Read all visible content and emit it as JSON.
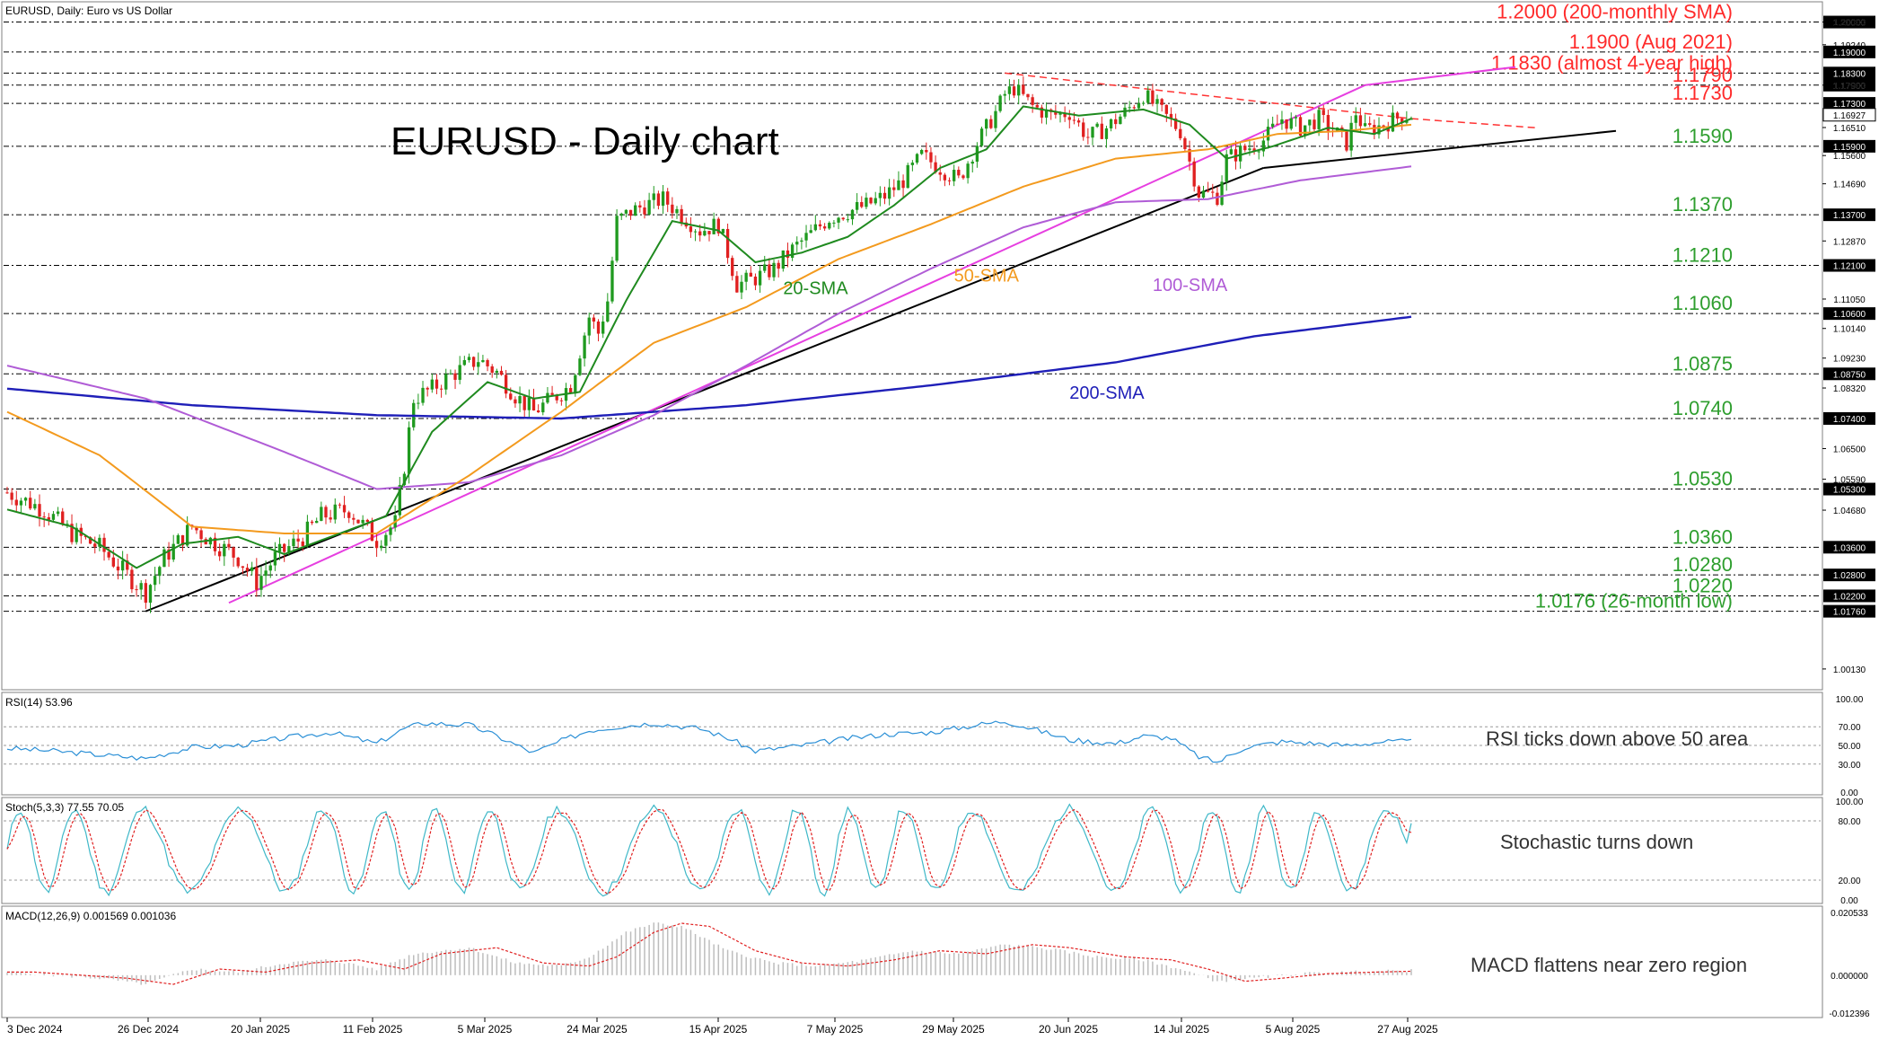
{
  "header": {
    "symbol_line": "EURUSD, Daily:  Euro vs US Dollar"
  },
  "chart_title": "EURUSD - Daily chart",
  "chart_data": {
    "type": "line",
    "main": {
      "price_axis_ticks": [
        1.2,
        1.1924,
        1.179,
        1.1651,
        1.156,
        1.1469,
        1.1287,
        1.1105,
        1.1014,
        1.0923,
        1.0832,
        1.065,
        1.0559,
        1.0468,
        1.0013
      ],
      "levels": [
        {
          "value": 1.2,
          "label": "1.2000 (200-monthly SMA)",
          "axis": "1.20000",
          "color": "#ff2a2a"
        },
        {
          "value": 1.19,
          "label": "1.1900 (Aug 2021)",
          "axis": "1.19000",
          "color": "#ff2a2a"
        },
        {
          "value": 1.183,
          "label": "1.1830 (almost 4-year high)",
          "axis": "1.18300",
          "color": "#ff2a2a"
        },
        {
          "value": 1.179,
          "label": "1.1790",
          "axis": "1.17900",
          "color": "#ff2a2a"
        },
        {
          "value": 1.173,
          "label": "1.1730",
          "axis": "1.17300",
          "color": "#ff2a2a"
        },
        {
          "value": 1.159,
          "label": "1.1590",
          "axis": "1.15900",
          "color": "#2e9e2e"
        },
        {
          "value": 1.137,
          "label": "1.1370",
          "axis": "1.13700",
          "color": "#2e9e2e"
        },
        {
          "value": 1.121,
          "label": "1.1210",
          "axis": "1.12100",
          "color": "#2e9e2e"
        },
        {
          "value": 1.106,
          "label": "1.1060",
          "axis": "1.10600",
          "color": "#2e9e2e"
        },
        {
          "value": 1.0875,
          "label": "1.0875",
          "axis": "1.08750",
          "color": "#2e9e2e"
        },
        {
          "value": 1.074,
          "label": "1.0740",
          "axis": "1.07400",
          "color": "#2e9e2e"
        },
        {
          "value": 1.053,
          "label": "1.0530",
          "axis": "1.05300",
          "color": "#2e9e2e"
        },
        {
          "value": 1.036,
          "label": "1.0360",
          "axis": "1.03600",
          "color": "#2e9e2e"
        },
        {
          "value": 1.028,
          "label": "1.0280",
          "axis": "1.02800",
          "color": "#2e9e2e"
        },
        {
          "value": 1.022,
          "label": "1.0220",
          "axis": "1.02200",
          "color": "#2e9e2e"
        },
        {
          "value": 1.0176,
          "label": "1.0176 (26-month low)",
          "axis": "1.01760",
          "color": "#2e9e2e"
        }
      ],
      "current_price_label": "1.16927",
      "current_price": 1.16927,
      "sma_labels": [
        {
          "text": "20-SMA",
          "color": "#1f8a1f"
        },
        {
          "text": "50-SMA",
          "color": "#f39a1e"
        },
        {
          "text": "100-SMA",
          "color": "#b05cd6"
        },
        {
          "text": "200-SMA",
          "color": "#1f1fb8"
        }
      ],
      "close_anchors": [
        [
          0,
          1.052
        ],
        [
          8,
          1.047
        ],
        [
          14,
          1.04
        ],
        [
          20,
          1.036
        ],
        [
          26,
          1.028
        ],
        [
          30,
          1.023
        ],
        [
          34,
          1.033
        ],
        [
          40,
          1.042
        ],
        [
          44,
          1.038
        ],
        [
          50,
          1.033
        ],
        [
          54,
          1.026
        ],
        [
          58,
          1.033
        ],
        [
          64,
          1.039
        ],
        [
          68,
          1.045
        ],
        [
          74,
          1.047
        ],
        [
          80,
          1.038
        ],
        [
          84,
          1.043
        ],
        [
          86,
          1.06
        ],
        [
          88,
          1.08
        ],
        [
          92,
          1.083
        ],
        [
          96,
          1.087
        ],
        [
          102,
          1.092
        ],
        [
          106,
          1.088
        ],
        [
          110,
          1.081
        ],
        [
          114,
          1.076
        ],
        [
          118,
          1.08
        ],
        [
          122,
          1.084
        ],
        [
          126,
          1.105
        ],
        [
          128,
          1.1
        ],
        [
          130,
          1.11
        ],
        [
          132,
          1.135
        ],
        [
          135,
          1.138
        ],
        [
          138,
          1.14
        ],
        [
          142,
          1.142
        ],
        [
          146,
          1.137
        ],
        [
          150,
          1.132
        ],
        [
          154,
          1.134
        ],
        [
          156,
          1.125
        ],
        [
          158,
          1.115
        ],
        [
          162,
          1.117
        ],
        [
          166,
          1.12
        ],
        [
          170,
          1.126
        ],
        [
          174,
          1.131
        ],
        [
          178,
          1.136
        ],
        [
          182,
          1.138
        ],
        [
          186,
          1.14
        ],
        [
          190,
          1.143
        ],
        [
          194,
          1.148
        ],
        [
          198,
          1.156
        ],
        [
          202,
          1.152
        ],
        [
          206,
          1.148
        ],
        [
          210,
          1.16
        ],
        [
          214,
          1.17
        ],
        [
          216,
          1.176
        ],
        [
          218,
          1.178
        ],
        [
          222,
          1.172
        ],
        [
          226,
          1.169
        ],
        [
          230,
          1.17
        ],
        [
          234,
          1.162
        ],
        [
          238,
          1.165
        ],
        [
          242,
          1.17
        ],
        [
          246,
          1.176
        ],
        [
          250,
          1.17
        ],
        [
          254,
          1.164
        ],
        [
          258,
          1.144
        ],
        [
          262,
          1.143
        ],
        [
          264,
          1.155
        ],
        [
          268,
          1.158
        ],
        [
          272,
          1.161
        ],
        [
          276,
          1.168
        ],
        [
          280,
          1.165
        ],
        [
          284,
          1.168
        ],
        [
          288,
          1.163
        ],
        [
          290,
          1.16
        ],
        [
          292,
          1.17
        ],
        [
          294,
          1.164
        ],
        [
          298,
          1.166
        ],
        [
          302,
          1.169
        ],
        [
          304,
          1.1693
        ]
      ],
      "sma200_anchors": [
        [
          0,
          1.083
        ],
        [
          40,
          1.078
        ],
        [
          80,
          1.075
        ],
        [
          120,
          1.074
        ],
        [
          160,
          1.078
        ],
        [
          200,
          1.084
        ],
        [
          240,
          1.091
        ],
        [
          270,
          1.099
        ],
        [
          304,
          1.105
        ]
      ],
      "sma100_anchors": [
        [
          0,
          1.09
        ],
        [
          30,
          1.08
        ],
        [
          60,
          1.064
        ],
        [
          80,
          1.053
        ],
        [
          100,
          1.055
        ],
        [
          120,
          1.063
        ],
        [
          140,
          1.075
        ],
        [
          160,
          1.09
        ],
        [
          180,
          1.106
        ],
        [
          200,
          1.12
        ],
        [
          220,
          1.133
        ],
        [
          240,
          1.141
        ],
        [
          260,
          1.142
        ],
        [
          280,
          1.148
        ],
        [
          304,
          1.1525
        ]
      ],
      "sma50_anchors": [
        [
          0,
          1.076
        ],
        [
          20,
          1.063
        ],
        [
          40,
          1.042
        ],
        [
          60,
          1.04
        ],
        [
          80,
          1.04
        ],
        [
          100,
          1.057
        ],
        [
          120,
          1.076
        ],
        [
          140,
          1.097
        ],
        [
          160,
          1.108
        ],
        [
          180,
          1.123
        ],
        [
          200,
          1.134
        ],
        [
          220,
          1.146
        ],
        [
          240,
          1.155
        ],
        [
          260,
          1.158
        ],
        [
          275,
          1.163
        ],
        [
          290,
          1.164
        ],
        [
          304,
          1.166
        ]
      ],
      "sma20_anchors": [
        [
          0,
          1.047
        ],
        [
          14,
          1.042
        ],
        [
          28,
          1.03
        ],
        [
          38,
          1.037
        ],
        [
          50,
          1.039
        ],
        [
          60,
          1.034
        ],
        [
          72,
          1.04
        ],
        [
          82,
          1.045
        ],
        [
          92,
          1.07
        ],
        [
          104,
          1.085
        ],
        [
          114,
          1.08
        ],
        [
          124,
          1.082
        ],
        [
          134,
          1.11
        ],
        [
          144,
          1.135
        ],
        [
          154,
          1.132
        ],
        [
          162,
          1.122
        ],
        [
          172,
          1.125
        ],
        [
          182,
          1.13
        ],
        [
          192,
          1.14
        ],
        [
          202,
          1.152
        ],
        [
          212,
          1.158
        ],
        [
          220,
          1.172
        ],
        [
          232,
          1.169
        ],
        [
          246,
          1.171
        ],
        [
          256,
          1.166
        ],
        [
          264,
          1.155
        ],
        [
          274,
          1.159
        ],
        [
          286,
          1.165
        ],
        [
          296,
          1.163
        ],
        [
          304,
          1.168
        ]
      ],
      "trendlines": [
        {
          "from": [
            30,
            1.0176
          ],
          "to": [
            272,
            1.152
          ],
          "color": "#000000",
          "style": "solid"
        },
        {
          "from": [
            48,
            1.02
          ],
          "to": [
            294,
            1.179
          ],
          "color": "#e63fe0",
          "style": "solid"
        },
        {
          "from": [
            216,
            1.183
          ],
          "to": [
            304,
            1.168
          ],
          "color": "#ff3333",
          "style": "dashed"
        }
      ]
    },
    "rsi": {
      "label": "RSI(14) 53.96",
      "annotation": "RSI ticks down above 50 area",
      "ticks": [
        100,
        70,
        50,
        30,
        0
      ],
      "value": 53.96,
      "anchors": [
        [
          0,
          47
        ],
        [
          10,
          44
        ],
        [
          20,
          40
        ],
        [
          30,
          36
        ],
        [
          40,
          48
        ],
        [
          50,
          50
        ],
        [
          60,
          58
        ],
        [
          70,
          64
        ],
        [
          80,
          52
        ],
        [
          86,
          68
        ],
        [
          90,
          74
        ],
        [
          100,
          72
        ],
        [
          106,
          60
        ],
        [
          114,
          42
        ],
        [
          120,
          55
        ],
        [
          126,
          66
        ],
        [
          132,
          70
        ],
        [
          140,
          74
        ],
        [
          150,
          68
        ],
        [
          156,
          58
        ],
        [
          162,
          44
        ],
        [
          172,
          50
        ],
        [
          180,
          56
        ],
        [
          190,
          62
        ],
        [
          200,
          64
        ],
        [
          210,
          72
        ],
        [
          216,
          76
        ],
        [
          222,
          68
        ],
        [
          230,
          56
        ],
        [
          240,
          52
        ],
        [
          246,
          60
        ],
        [
          252,
          58
        ],
        [
          258,
          38
        ],
        [
          262,
          32
        ],
        [
          268,
          48
        ],
        [
          276,
          54
        ],
        [
          284,
          52
        ],
        [
          290,
          50
        ],
        [
          298,
          54
        ],
        [
          304,
          54
        ]
      ]
    },
    "stochastic": {
      "label": "Stoch(5,3,3) 77.55 70.05",
      "annotation": "Stochastic turns down",
      "ticks": [
        100,
        80,
        20,
        0
      ],
      "k": 77.55,
      "d": 70.05
    },
    "macd": {
      "label": "MACD(12,26,9) 0.001569 0.001036",
      "annotation": "MACD flattens near zero region",
      "ticks": [
        "0.020533",
        "0.000000",
        "-0.012396"
      ],
      "main": 0.001569,
      "signal": 0.001036,
      "hist_anchors": [
        [
          0,
          0.001
        ],
        [
          20,
          -0.001
        ],
        [
          30,
          -0.003
        ],
        [
          40,
          0.002
        ],
        [
          50,
          0.001
        ],
        [
          60,
          0.004
        ],
        [
          70,
          0.005
        ],
        [
          80,
          0.002
        ],
        [
          88,
          0.007
        ],
        [
          100,
          0.009
        ],
        [
          110,
          0.004
        ],
        [
          120,
          0.003
        ],
        [
          126,
          0.006
        ],
        [
          134,
          0.014
        ],
        [
          140,
          0.017
        ],
        [
          146,
          0.016
        ],
        [
          156,
          0.008
        ],
        [
          166,
          0.004
        ],
        [
          176,
          0.003
        ],
        [
          186,
          0.005
        ],
        [
          196,
          0.008
        ],
        [
          206,
          0.007
        ],
        [
          216,
          0.01
        ],
        [
          224,
          0.009
        ],
        [
          236,
          0.006
        ],
        [
          246,
          0.005
        ],
        [
          254,
          0.002
        ],
        [
          262,
          -0.002
        ],
        [
          270,
          -0.001
        ],
        [
          280,
          0.0005
        ],
        [
          290,
          0.001
        ],
        [
          304,
          0.0015
        ]
      ]
    },
    "x_labels": [
      "3 Dec 2024",
      "26 Dec 2024",
      "20 Jan 2025",
      "11 Feb 2025",
      "5 Mar 2025",
      "24 Mar 2025",
      "15 Apr 2025",
      "7 May 2025",
      "29 May 2025",
      "20 Jun 2025",
      "14 Jul 2025",
      "5 Aug 2025",
      "27 Aug 2025"
    ],
    "x_label_bars": [
      0,
      17,
      34,
      50,
      66,
      80,
      96,
      112,
      128,
      144,
      160,
      176,
      192
    ],
    "bars_shown": 305
  }
}
